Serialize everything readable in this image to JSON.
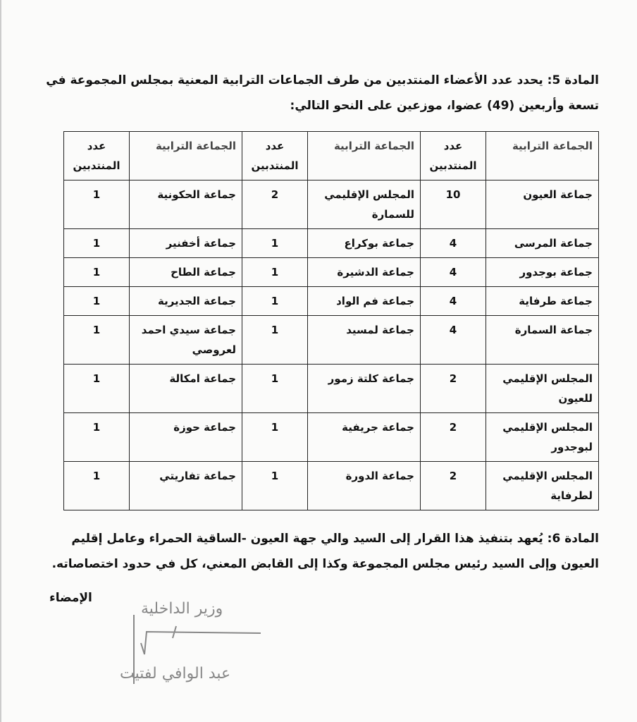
{
  "article5": {
    "text": "المادة 5: يحدد عدد الأعضاء المنتدبين من طرف الجماعات الترابية المعنية بمجلس المجموعة في تسعة وأربعين (49) عضوا، موزعين على النحو التالي:"
  },
  "table": {
    "headers": [
      "الجماعة الترابية",
      "عدد المنتدبين",
      "الجماعة الترابية",
      "عدد المنتدبين",
      "الجماعة الترابية",
      "عدد المنتدبين"
    ],
    "rows": [
      [
        "جماعة العيون",
        "10",
        "المجلس الإقليمي للسمارة",
        "2",
        "جماعة الحكونية",
        "1"
      ],
      [
        "جماعة المرسى",
        "4",
        "جماعة بوكراع",
        "1",
        "جماعة أخفنير",
        "1"
      ],
      [
        "جماعة بوجدور",
        "4",
        "جماعة الدشيرة",
        "1",
        "جماعة الطاح",
        "1"
      ],
      [
        "جماعة طرفاية",
        "4",
        "جماعة فم الواد",
        "1",
        "جماعة الجديرية",
        "1"
      ],
      [
        "جماعة السمارة",
        "4",
        "جماعة لمسيد",
        "1",
        "جماعة سيدي احمد لعروصي",
        "1"
      ],
      [
        "المجلس الإقليمي للعيون",
        "2",
        "جماعة كلتة زمور",
        "1",
        "جماعة امكالة",
        "1"
      ],
      [
        "المجلس الإقليمي لبوجدور",
        "2",
        "جماعة جريفية",
        "1",
        "جماعة حوزة",
        "1"
      ],
      [
        "المجلس الإقليمي لطرفاية",
        "2",
        "جماعة الدورة",
        "1",
        "جماعة تفاريتي",
        "1"
      ]
    ]
  },
  "article6": {
    "text": "المادة 6: يُعهد بتنفيذ هذا القرار إلى السيد والي جهة العيون -الساقية الحمراء وعامل إقليم العيون وإلى السيد رئيس مجلس المجموعة وكذا إلى القابض المعني، كل في حدود اختصاصاته."
  },
  "signature": {
    "label": "الإمضاء",
    "title": "وزير الداخلية",
    "name": "عبد الوافي لفتيت"
  }
}
